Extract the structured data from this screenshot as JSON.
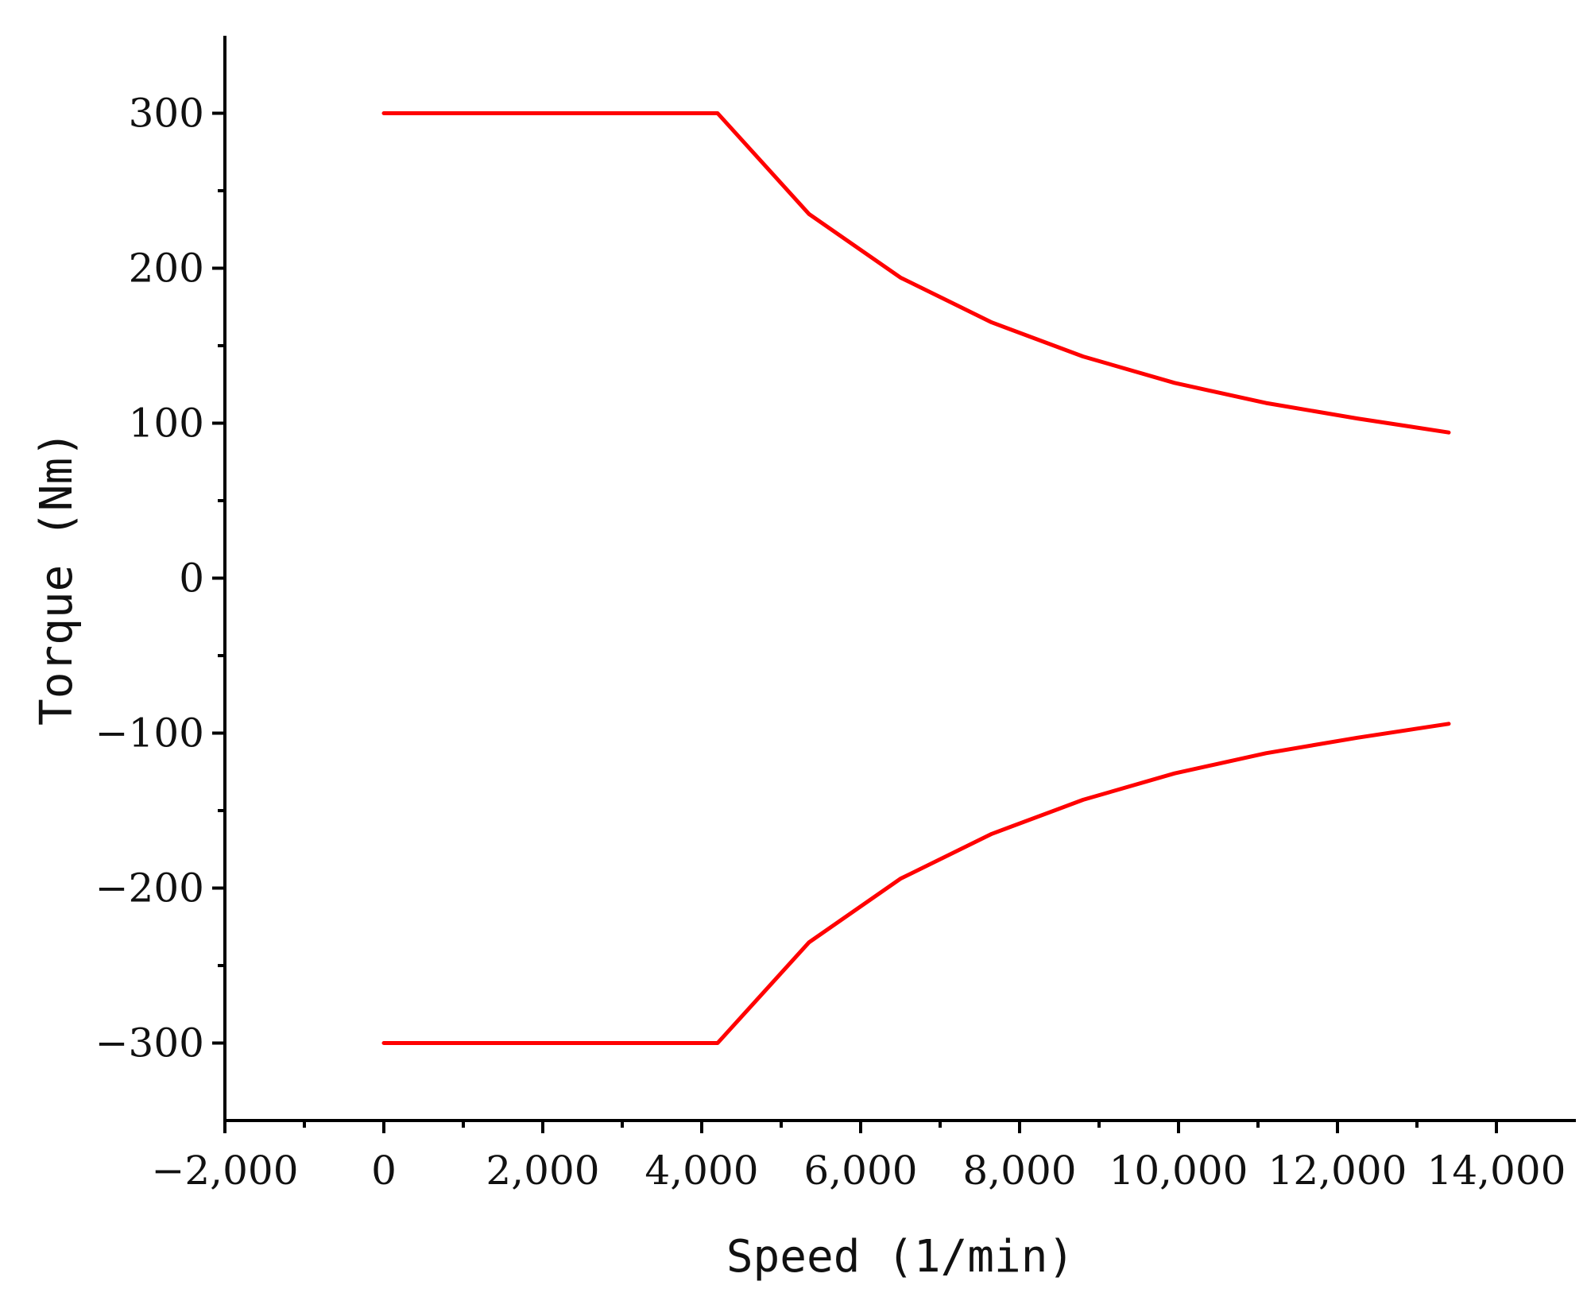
{
  "chart_data": {
    "type": "line",
    "title": "",
    "xlabel": "Speed (1/min)",
    "ylabel": "Torque (Nm)",
    "xlim": [
      -2000,
      15000
    ],
    "ylim": [
      -350,
      350
    ],
    "x_ticks": [
      -2000,
      0,
      2000,
      4000,
      6000,
      8000,
      10000,
      12000,
      14000
    ],
    "x_tick_labels": [
      "−2,000",
      "0",
      "2,000",
      "4,000",
      "6,000",
      "8,000",
      "10,000",
      "12,000",
      "14,000"
    ],
    "x_minor_ticks": [
      -1000,
      1000,
      3000,
      5000,
      7000,
      9000,
      11000,
      13000
    ],
    "y_ticks": [
      -300,
      -200,
      -100,
      0,
      100,
      200,
      300
    ],
    "y_tick_labels": [
      "−300",
      "−200",
      "−100",
      "0",
      "100",
      "200",
      "300"
    ],
    "y_minor_ticks": [
      -250,
      -150,
      -50,
      50,
      150,
      250
    ],
    "grid": false,
    "legend": "none",
    "color": "#ff0000",
    "series": [
      {
        "x": [
          0,
          4200,
          5350,
          6500,
          7650,
          8800,
          9950,
          11100,
          12250,
          13400
        ],
        "y": [
          300,
          300,
          235,
          194,
          165,
          143,
          126,
          113,
          103,
          94
        ]
      },
      {
        "x": [
          0,
          4200,
          5350,
          6500,
          7650,
          8800,
          9950,
          11100,
          12250,
          13400
        ],
        "y": [
          -300,
          -300,
          -235,
          -194,
          -165,
          -143,
          -126,
          -113,
          -103,
          -94
        ]
      }
    ]
  }
}
